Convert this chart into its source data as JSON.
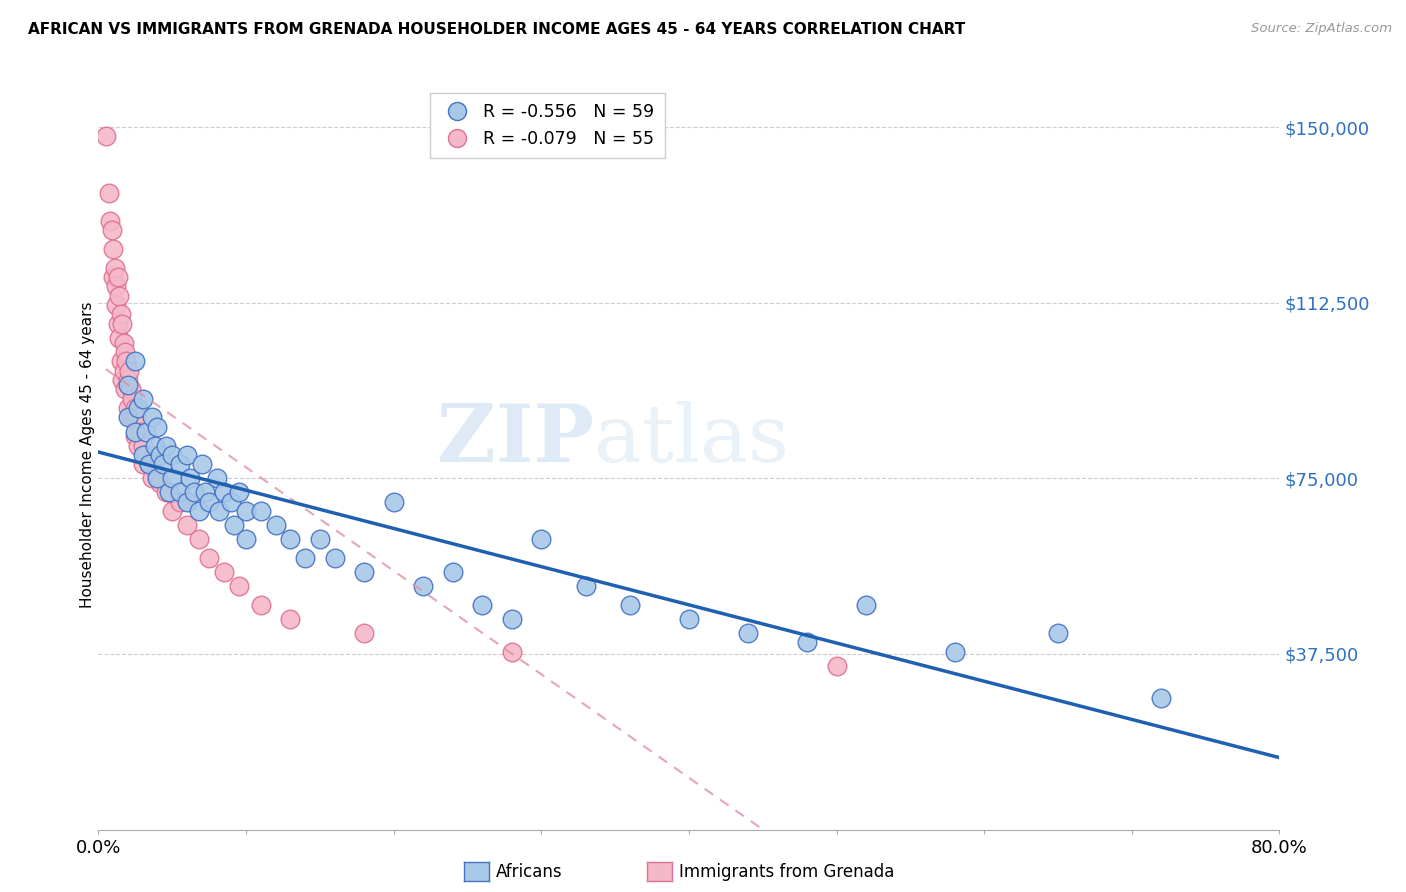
{
  "title": "AFRICAN VS IMMIGRANTS FROM GRENADA HOUSEHOLDER INCOME AGES 45 - 64 YEARS CORRELATION CHART",
  "source": "Source: ZipAtlas.com",
  "ylabel": "Householder Income Ages 45 - 64 years",
  "yticks": [
    0,
    37500,
    75000,
    112500,
    150000
  ],
  "ytick_labels": [
    "",
    "$37,500",
    "$75,000",
    "$112,500",
    "$150,000"
  ],
  "xmin": 0.0,
  "xmax": 0.8,
  "ymin": 0,
  "ymax": 160000,
  "africans_color": "#a8c8e8",
  "africans_edge_color": "#4472c4",
  "grenada_color": "#f4b8c8",
  "grenada_edge_color": "#e07090",
  "africans_R": -0.556,
  "africans_N": 59,
  "grenada_R": -0.079,
  "grenada_N": 55,
  "regression_blue_color": "#2060b0",
  "regression_pink_color": "#e090a0",
  "watermark_zip": "ZIP",
  "watermark_atlas": "atlas",
  "africans_x": [
    0.02,
    0.02,
    0.025,
    0.025,
    0.027,
    0.03,
    0.03,
    0.032,
    0.034,
    0.036,
    0.038,
    0.04,
    0.04,
    0.042,
    0.044,
    0.046,
    0.048,
    0.05,
    0.05,
    0.055,
    0.055,
    0.06,
    0.06,
    0.062,
    0.065,
    0.068,
    0.07,
    0.072,
    0.075,
    0.08,
    0.082,
    0.085,
    0.09,
    0.092,
    0.095,
    0.1,
    0.1,
    0.11,
    0.12,
    0.13,
    0.14,
    0.15,
    0.16,
    0.18,
    0.2,
    0.22,
    0.24,
    0.26,
    0.28,
    0.3,
    0.33,
    0.36,
    0.4,
    0.44,
    0.48,
    0.52,
    0.58,
    0.65,
    0.72
  ],
  "africans_y": [
    95000,
    88000,
    100000,
    85000,
    90000,
    92000,
    80000,
    85000,
    78000,
    88000,
    82000,
    86000,
    75000,
    80000,
    78000,
    82000,
    72000,
    80000,
    75000,
    78000,
    72000,
    80000,
    70000,
    75000,
    72000,
    68000,
    78000,
    72000,
    70000,
    75000,
    68000,
    72000,
    70000,
    65000,
    72000,
    68000,
    62000,
    68000,
    65000,
    62000,
    58000,
    62000,
    58000,
    55000,
    70000,
    52000,
    55000,
    48000,
    45000,
    62000,
    52000,
    48000,
    45000,
    42000,
    40000,
    48000,
    38000,
    42000,
    28000
  ],
  "grenada_x": [
    0.005,
    0.007,
    0.008,
    0.009,
    0.01,
    0.01,
    0.011,
    0.012,
    0.012,
    0.013,
    0.013,
    0.014,
    0.014,
    0.015,
    0.015,
    0.016,
    0.016,
    0.017,
    0.017,
    0.018,
    0.018,
    0.019,
    0.02,
    0.02,
    0.021,
    0.022,
    0.022,
    0.023,
    0.024,
    0.025,
    0.025,
    0.026,
    0.027,
    0.028,
    0.03,
    0.03,
    0.032,
    0.034,
    0.036,
    0.038,
    0.04,
    0.042,
    0.046,
    0.05,
    0.055,
    0.06,
    0.068,
    0.075,
    0.085,
    0.095,
    0.11,
    0.13,
    0.18,
    0.28,
    0.5
  ],
  "grenada_y": [
    148000,
    136000,
    130000,
    128000,
    124000,
    118000,
    120000,
    116000,
    112000,
    118000,
    108000,
    114000,
    105000,
    110000,
    100000,
    108000,
    96000,
    104000,
    98000,
    102000,
    94000,
    100000,
    96000,
    90000,
    98000,
    94000,
    88000,
    92000,
    88000,
    90000,
    84000,
    88000,
    82000,
    85000,
    82000,
    78000,
    80000,
    78000,
    75000,
    80000,
    76000,
    74000,
    72000,
    68000,
    70000,
    65000,
    62000,
    58000,
    55000,
    52000,
    48000,
    45000,
    42000,
    38000,
    35000
  ]
}
